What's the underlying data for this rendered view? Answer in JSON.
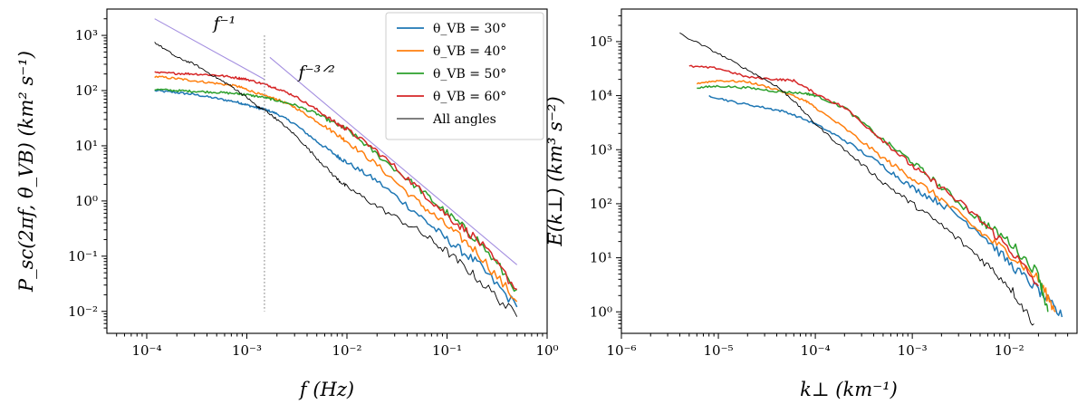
{
  "chart_data": [
    {
      "type": "line",
      "xscale": "log",
      "yscale": "log",
      "xlabel": "f (Hz)",
      "ylabel": "P_sc(2πf, θ_VB) (km² s⁻¹)",
      "xlim": [
        4e-05,
        1
      ],
      "ylim": [
        0.004,
        3000
      ],
      "x_ticks": [
        0.0001,
        0.001,
        0.01,
        0.1,
        1
      ],
      "x_tick_labels": [
        "10⁻⁴",
        "10⁻³",
        "10⁻²",
        "10⁻¹",
        "10⁰"
      ],
      "y_ticks": [
        0.01,
        0.1,
        1,
        10,
        100,
        1000
      ],
      "y_tick_labels": [
        "10⁻²",
        "10⁻¹",
        "10⁰",
        "10¹",
        "10²",
        "10³"
      ],
      "legend_position": "top-right",
      "legend": [
        "θ_VB = 30°",
        "θ_VB = 40°",
        "θ_VB = 50°",
        "θ_VB = 60°",
        "All angles"
      ],
      "series": [
        {
          "name": "θ_VB = 30°",
          "color": "#1f77b4",
          "x": [
            0.00012,
            0.0002,
            0.0003,
            0.0005,
            0.0008,
            0.001,
            0.0013,
            0.0015,
            0.002,
            0.003,
            0.005,
            0.008,
            0.01,
            0.02,
            0.05,
            0.1,
            0.2,
            0.5
          ],
          "y": [
            100,
            92,
            85,
            72,
            62,
            55,
            48,
            46,
            38,
            25,
            12,
            6.5,
            5,
            2.3,
            0.6,
            0.2,
            0.075,
            0.012
          ]
        },
        {
          "name": "θ_VB = 40°",
          "color": "#ff7f0e",
          "x": [
            0.00012,
            0.0002,
            0.0003,
            0.0005,
            0.0008,
            0.001,
            0.0015,
            0.002,
            0.003,
            0.005,
            0.008,
            0.01,
            0.02,
            0.05,
            0.1,
            0.2,
            0.5
          ],
          "y": [
            180,
            165,
            150,
            135,
            120,
            105,
            80,
            70,
            50,
            28,
            16,
            12,
            4.5,
            1,
            0.35,
            0.12,
            0.015
          ]
        },
        {
          "name": "θ_VB = 50°",
          "color": "#2ca02c",
          "x": [
            0.00012,
            0.0002,
            0.0003,
            0.0005,
            0.0008,
            0.001,
            0.0015,
            0.002,
            0.003,
            0.005,
            0.008,
            0.01,
            0.02,
            0.05,
            0.1,
            0.2,
            0.5
          ],
          "y": [
            105,
            100,
            97,
            93,
            88,
            84,
            75,
            66,
            55,
            38,
            24,
            20,
            7,
            1.8,
            0.6,
            0.2,
            0.025
          ]
        },
        {
          "name": "θ_VB = 60°",
          "color": "#d62728",
          "x": [
            0.00012,
            0.0002,
            0.0003,
            0.0005,
            0.0008,
            0.001,
            0.0015,
            0.002,
            0.003,
            0.005,
            0.008,
            0.01,
            0.02,
            0.05,
            0.1,
            0.2,
            0.5
          ],
          "y": [
            210,
            205,
            200,
            190,
            170,
            160,
            130,
            110,
            80,
            45,
            25,
            20,
            8,
            1.8,
            0.55,
            0.2,
            0.025
          ]
        },
        {
          "name": "All angles",
          "color": "#000000",
          "x": [
            0.00012,
            0.0002,
            0.0003,
            0.0005,
            0.0007,
            0.001,
            0.0013,
            0.0015,
            0.002,
            0.003,
            0.005,
            0.008,
            0.01,
            0.02,
            0.05,
            0.1,
            0.2,
            0.5
          ],
          "y": [
            750,
            400,
            300,
            170,
            120,
            75,
            50,
            45,
            30,
            16,
            6,
            2.5,
            1.8,
            0.8,
            0.3,
            0.12,
            0.04,
            0.008
          ]
        },
        {
          "name": "f^-1 reference",
          "color": "#a48fe0",
          "x": [
            0.00012,
            0.0015
          ],
          "y": [
            2000,
            160
          ]
        },
        {
          "name": "f^-3/2 reference",
          "color": "#a48fe0",
          "x": [
            0.0017,
            0.5
          ],
          "y": [
            400,
            0.07
          ]
        }
      ],
      "vline": {
        "x": 0.0015,
        "y_range": [
          0.01,
          1000
        ],
        "style": "dotted",
        "color": "#888888"
      },
      "annotations": [
        {
          "text": "f⁻¹",
          "x": 0.0006,
          "y": 1300
        },
        {
          "text": "f⁻³ᐟ²",
          "x": 0.005,
          "y": 170
        }
      ]
    },
    {
      "type": "line",
      "xscale": "log",
      "yscale": "log",
      "xlabel": "k⊥ (km⁻¹)",
      "ylabel": "E(k⊥) (km³ s⁻²)",
      "xlim": [
        1e-06,
        0.05
      ],
      "ylim": [
        0.4,
        400000
      ],
      "x_ticks": [
        1e-06,
        1e-05,
        0.0001,
        0.001,
        0.01
      ],
      "x_tick_labels": [
        "10⁻⁶",
        "10⁻⁵",
        "10⁻⁴",
        "10⁻³",
        "10⁻²"
      ],
      "y_ticks": [
        1,
        10,
        100,
        1000,
        10000,
        100000
      ],
      "y_tick_labels": [
        "10⁰",
        "10¹",
        "10²",
        "10³",
        "10⁴",
        "10⁵"
      ],
      "series": [
        {
          "name": "θ_VB = 30°",
          "color": "#1f77b4",
          "x": [
            8e-06,
            1.5e-05,
            3e-05,
            5e-05,
            0.0001,
            0.0002,
            0.0005,
            0.001,
            0.002,
            0.005,
            0.01,
            0.02,
            0.035
          ],
          "y": [
            10000,
            7500,
            6000,
            5000,
            3000,
            1500,
            500,
            200,
            100,
            30,
            8,
            2.5,
            0.8
          ]
        },
        {
          "name": "θ_VB = 40°",
          "color": "#ff7f0e",
          "x": [
            6e-06,
            1e-05,
            2e-05,
            4e-05,
            8e-05,
            0.0001,
            0.0002,
            0.0005,
            0.001,
            0.002,
            0.005,
            0.01,
            0.02,
            0.03
          ],
          "y": [
            17000,
            19000,
            18000,
            13000,
            8000,
            6000,
            2500,
            700,
            300,
            120,
            30,
            12,
            4,
            1
          ]
        },
        {
          "name": "θ_VB = 50°",
          "color": "#2ca02c",
          "x": [
            6e-06,
            1e-05,
            2e-05,
            4e-05,
            8e-05,
            0.0001,
            0.0002,
            0.0005,
            0.001,
            0.002,
            0.005,
            0.01,
            0.02,
            0.025
          ],
          "y": [
            14000,
            15000,
            14000,
            12000,
            11000,
            10000,
            6000,
            1500,
            600,
            200,
            50,
            20,
            5,
            1
          ]
        },
        {
          "name": "θ_VB = 60°",
          "color": "#d62728",
          "x": [
            5e-06,
            1e-05,
            2e-05,
            4e-05,
            6e-05,
            0.0001,
            0.0002,
            0.0005,
            0.001,
            0.002,
            0.005,
            0.01,
            0.02
          ],
          "y": [
            35000,
            32000,
            22000,
            20000,
            19000,
            11000,
            6000,
            1500,
            500,
            200,
            50,
            15,
            3
          ]
        },
        {
          "name": "All angles",
          "color": "#000000",
          "x": [
            4e-06,
            1e-05,
            2e-05,
            4e-05,
            6e-05,
            0.0001,
            0.0002,
            0.0005,
            0.001,
            0.002,
            0.005,
            0.01,
            0.018
          ],
          "y": [
            140000,
            60000,
            30000,
            15000,
            8000,
            3000,
            1000,
            250,
            100,
            40,
            10,
            3,
            0.6
          ]
        }
      ]
    }
  ]
}
